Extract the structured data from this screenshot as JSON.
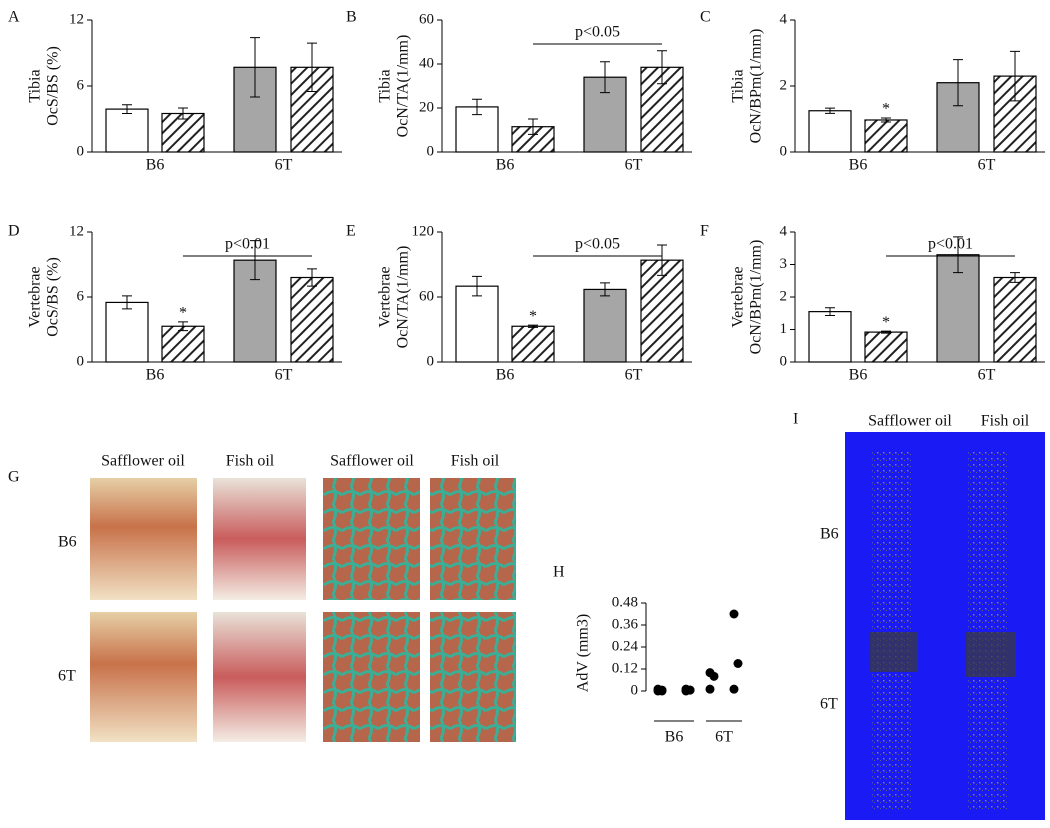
{
  "chart_data": [
    {
      "type": "bar",
      "panel": "A",
      "ylabel": [
        "Tibia",
        "OcS/BS (%)"
      ],
      "groups": [
        "B6",
        "6T"
      ],
      "values": [
        3.9,
        3.5,
        7.7,
        7.7
      ],
      "errors": [
        0.4,
        0.5,
        2.7,
        2.2
      ],
      "colors": [
        "#ffffff",
        "#ffffff",
        "#a6a6a6",
        "#a6a6a6"
      ],
      "hatched": [
        false,
        true,
        false,
        true
      ],
      "ylim": [
        0,
        12
      ],
      "yticks": [
        0,
        6,
        12
      ]
    },
    {
      "type": "bar",
      "panel": "B",
      "ylabel": [
        "Tibia",
        "OcN/TA(1/mm)"
      ],
      "groups": [
        "B6",
        "6T"
      ],
      "values": [
        20.5,
        11.5,
        34,
        38.5
      ],
      "errors": [
        3.5,
        3.5,
        7,
        7.5
      ],
      "colors": [
        "#ffffff",
        "#ffffff",
        "#a6a6a6",
        "#a6a6a6"
      ],
      "hatched": [
        false,
        true,
        false,
        true
      ],
      "ylim": [
        0,
        60
      ],
      "yticks": [
        0,
        20,
        40,
        60
      ],
      "bracket": "p<0.05"
    },
    {
      "type": "bar",
      "panel": "C",
      "ylabel": [
        "Tibia",
        "OcN/BPm(1/mm)"
      ],
      "groups": [
        "B6",
        "6T"
      ],
      "values": [
        1.25,
        0.97,
        2.1,
        2.3
      ],
      "errors": [
        0.08,
        0.06,
        0.7,
        0.75
      ],
      "colors": [
        "#ffffff",
        "#ffffff",
        "#a6a6a6",
        "#a6a6a6"
      ],
      "hatched": [
        false,
        true,
        false,
        true
      ],
      "bar_notes": [
        null,
        "*",
        null,
        null
      ],
      "ylim": [
        0,
        4
      ],
      "yticks": [
        0,
        2,
        4
      ]
    },
    {
      "type": "bar",
      "panel": "D",
      "ylabel": [
        "Vertebrae",
        "OcS/BS (%)"
      ],
      "groups": [
        "B6",
        "6T"
      ],
      "values": [
        5.5,
        3.3,
        9.4,
        7.8
      ],
      "errors": [
        0.6,
        0.4,
        1.8,
        0.8
      ],
      "colors": [
        "#ffffff",
        "#ffffff",
        "#a6a6a6",
        "#a6a6a6"
      ],
      "hatched": [
        false,
        true,
        false,
        true
      ],
      "bar_notes": [
        null,
        "*",
        null,
        null
      ],
      "ylim": [
        0,
        12
      ],
      "yticks": [
        0,
        6,
        12
      ],
      "bracket": "p<0.01"
    },
    {
      "type": "bar",
      "panel": "E",
      "ylabel": [
        "Vertebrae",
        "OcN/TA(1/mm)"
      ],
      "groups": [
        "B6",
        "6T"
      ],
      "values": [
        70,
        33,
        67,
        94
      ],
      "errors": [
        9,
        1,
        6,
        14
      ],
      "colors": [
        "#ffffff",
        "#ffffff",
        "#a6a6a6",
        "#a6a6a6"
      ],
      "hatched": [
        false,
        true,
        false,
        true
      ],
      "bar_notes": [
        null,
        "*",
        null,
        null
      ],
      "ylim": [
        0,
        120
      ],
      "yticks": [
        0,
        60,
        120
      ],
      "bracket": "p<0.05"
    },
    {
      "type": "bar",
      "panel": "F",
      "ylabel": [
        "Vertebrae",
        "OcN/BPm(1/mm)"
      ],
      "groups": [
        "B6",
        "6T"
      ],
      "values": [
        1.55,
        0.92,
        3.3,
        2.6
      ],
      "errors": [
        0.12,
        0.03,
        0.55,
        0.15
      ],
      "colors": [
        "#ffffff",
        "#ffffff",
        "#a6a6a6",
        "#a6a6a6"
      ],
      "hatched": [
        false,
        true,
        false,
        true
      ],
      "bar_notes": [
        null,
        "*",
        null,
        null
      ],
      "ylim": [
        0,
        4
      ],
      "yticks": [
        0,
        1,
        2,
        3,
        4
      ],
      "bracket": "p<0.01"
    },
    {
      "type": "strip",
      "panel": "H",
      "ylabel": "AdV (mm3)",
      "groups": [
        "B6",
        "6T"
      ],
      "color": "#000000",
      "columns": [
        [
          0,
          0.005,
          0.01,
          0
        ],
        [
          0,
          0.005,
          0.01,
          0.005
        ],
        [
          0.1,
          0.08,
          0.01
        ],
        [
          0.42,
          0.15,
          0.01
        ]
      ],
      "ylim": [
        0,
        0.48
      ],
      "yticks": [
        0,
        0.12,
        0.24,
        0.36,
        0.48
      ]
    }
  ],
  "histology": {
    "panel": "G",
    "columns": [
      "Safflower oil",
      "Fish oil",
      "Safflower oil",
      "Fish oil"
    ],
    "rows": [
      "B6",
      "6T"
    ]
  },
  "micro_ct": {
    "panel": "I",
    "columns": [
      "Safflower oil",
      "Fish oil"
    ],
    "rows": [
      "B6",
      "6T"
    ]
  }
}
